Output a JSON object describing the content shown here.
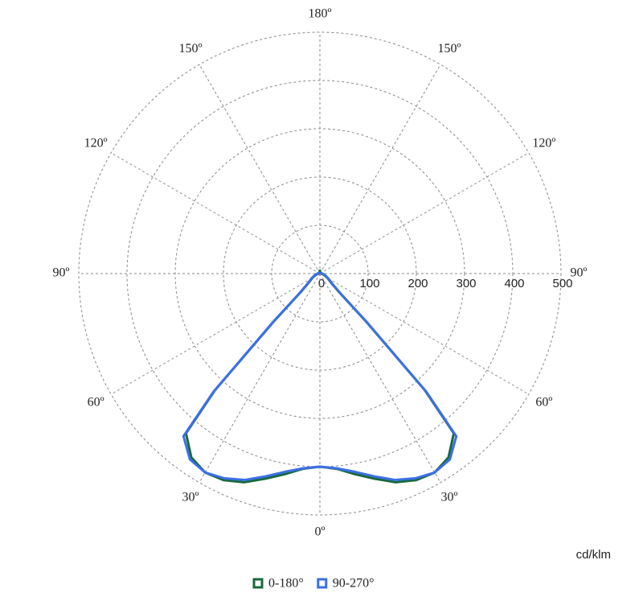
{
  "chart_data": {
    "type": "polar",
    "theta": [
      0,
      5,
      10,
      15,
      20,
      25,
      30,
      35,
      40,
      42,
      44,
      46,
      50,
      60,
      70,
      80,
      90,
      100,
      120,
      140,
      160,
      180
    ],
    "series": [
      {
        "name": "0-180°",
        "color": "#17693a",
        "values": [
          400,
          406,
          422,
          440,
          460,
          472,
          476,
          465,
          432,
          325,
          135,
          55,
          32,
          18,
          10,
          6,
          4,
          3,
          3,
          2,
          2,
          8
        ]
      },
      {
        "name": "90-270°",
        "color": "#3c6fe6",
        "values": [
          400,
          405,
          417,
          435,
          455,
          468,
          476,
          470,
          440,
          330,
          140,
          60,
          35,
          20,
          12,
          8,
          5,
          3,
          2,
          2,
          1,
          3
        ]
      }
    ],
    "rlim": [
      0,
      500
    ],
    "rticks": [
      0,
      100,
      200,
      300,
      400,
      500
    ],
    "angle_ticks": [
      {
        "value": 0,
        "label": "0º"
      },
      {
        "value": 30,
        "label": "30º"
      },
      {
        "value": 60,
        "label": "60º"
      },
      {
        "value": 90,
        "label": "90º"
      },
      {
        "value": 120,
        "label": "120º"
      },
      {
        "value": 150,
        "label": "150º"
      },
      {
        "value": 180,
        "label": "180º"
      }
    ],
    "unit_label": "cd/klm",
    "grid": true
  }
}
